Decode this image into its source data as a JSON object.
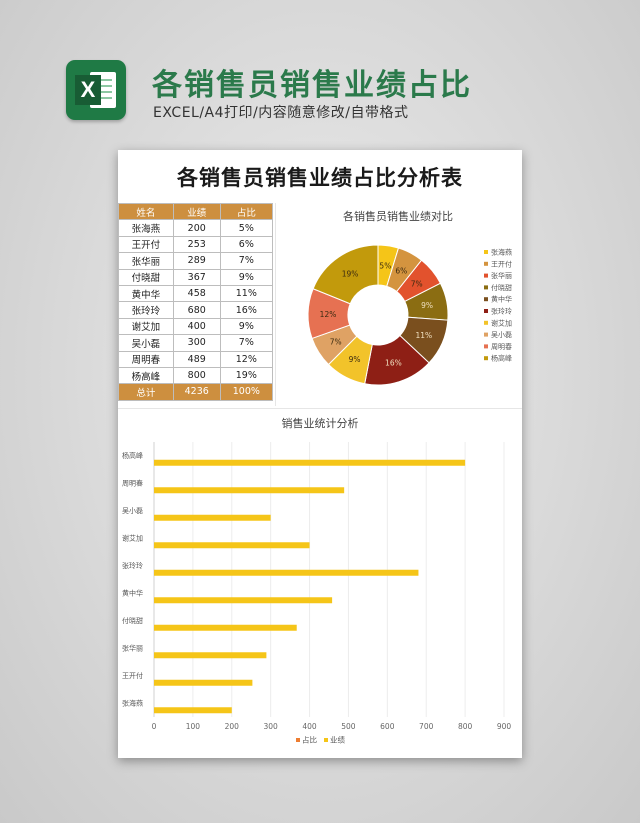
{
  "header": {
    "title": "各销售员销售业绩占比",
    "subtitle": "EXCEL/A4打印/内容随意修改/自带格式",
    "logo_letter": "X"
  },
  "document": {
    "title": "各销售员销售业绩占比分析表",
    "table": {
      "columns": [
        "姓名",
        "业绩",
        "占比"
      ],
      "rows": [
        [
          "张海燕",
          "200",
          "5%"
        ],
        [
          "王开付",
          "253",
          "6%"
        ],
        [
          "张华丽",
          "289",
          "7%"
        ],
        [
          "付晓甜",
          "367",
          "9%"
        ],
        [
          "黄中华",
          "458",
          "11%"
        ],
        [
          "张玲玲",
          "680",
          "16%"
        ],
        [
          "谢艾加",
          "400",
          "9%"
        ],
        [
          "吴小磊",
          "300",
          "7%"
        ],
        [
          "周明春",
          "489",
          "12%"
        ],
        [
          "杨高峰",
          "800",
          "19%"
        ]
      ],
      "total": [
        "总计",
        "4236",
        "100%"
      ]
    }
  },
  "chart_data": [
    {
      "type": "pie",
      "donut": true,
      "title": "各销售员销售业绩对比",
      "categories": [
        "张海燕",
        "王开付",
        "张华丽",
        "付晓甜",
        "黄中华",
        "张玲玲",
        "谢艾加",
        "吴小磊",
        "周明春",
        "杨高峰"
      ],
      "values": [
        200,
        253,
        289,
        367,
        458,
        680,
        400,
        300,
        489,
        800
      ],
      "labels": [
        "5%",
        "6%",
        "7%",
        "9%",
        "11%",
        "16%",
        "9%",
        "7%",
        "12%",
        "19%"
      ],
      "colors": [
        "#f5c518",
        "#d4943f",
        "#e2522d",
        "#8b6d12",
        "#7a4f1e",
        "#8e1f15",
        "#f2c32a",
        "#dfa264",
        "#e67152",
        "#c29a0c"
      ],
      "legend": "right"
    },
    {
      "type": "bar",
      "orientation": "horizontal",
      "title": "销售业统计分析",
      "categories": [
        "张海燕",
        "王开付",
        "张华丽",
        "付晓甜",
        "黄中华",
        "张玲玲",
        "谢艾加",
        "吴小磊",
        "周明春",
        "杨高峰"
      ],
      "series": [
        {
          "name": "业绩",
          "values": [
            200,
            253,
            289,
            367,
            458,
            680,
            400,
            300,
            489,
            800
          ],
          "color": "#f5c518"
        }
      ],
      "legend_items": [
        {
          "name": "占比",
          "color": "#ed7d31"
        },
        {
          "name": "业绩",
          "color": "#f5c518"
        }
      ],
      "xlim": [
        0,
        900
      ],
      "xticks": [
        "0",
        "100",
        "200",
        "300",
        "400",
        "500",
        "600",
        "700",
        "800",
        "900"
      ],
      "grid": true,
      "legend": "bottom"
    }
  ]
}
